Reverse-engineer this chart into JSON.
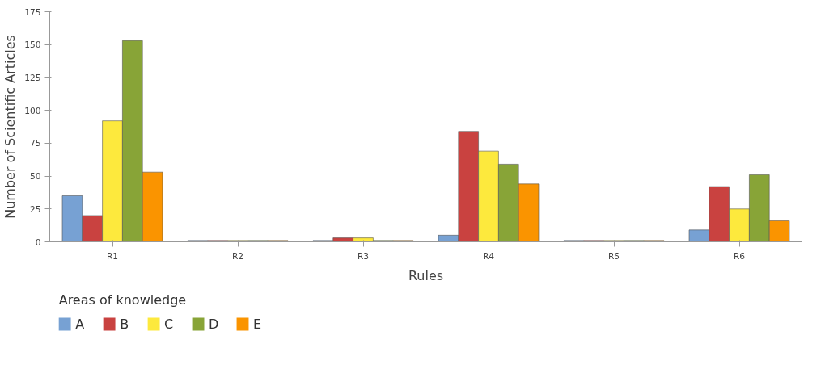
{
  "chart_data": {
    "type": "bar",
    "xlabel": "Rules",
    "ylabel": "Number of Scientific Articles",
    "legend_title": "Areas of knowledge",
    "categories": [
      "R1",
      "R2",
      "R3",
      "R4",
      "R5",
      "R6"
    ],
    "series": [
      {
        "name": "A",
        "color": "#77a1d3",
        "values": [
          35,
          1,
          1,
          5,
          1,
          9
        ]
      },
      {
        "name": "B",
        "color": "#c94240",
        "values": [
          20,
          1,
          3,
          84,
          1,
          42
        ]
      },
      {
        "name": "C",
        "color": "#fde93d",
        "values": [
          92,
          1,
          3,
          69,
          1,
          25
        ]
      },
      {
        "name": "D",
        "color": "#88a437",
        "values": [
          153,
          1,
          1,
          59,
          1,
          51
        ]
      },
      {
        "name": "E",
        "color": "#fa9400",
        "values": [
          53,
          1,
          1,
          44,
          1,
          16
        ]
      }
    ],
    "ylim": [
      0,
      175
    ],
    "yticks": [
      0,
      25,
      50,
      75,
      100,
      125,
      150,
      175
    ],
    "grid": false,
    "legend": "bottom left"
  }
}
